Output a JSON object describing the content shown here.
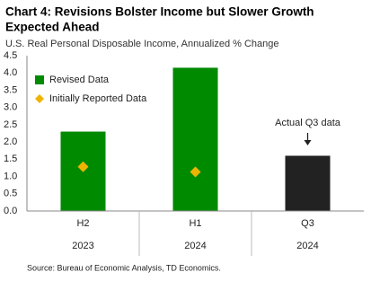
{
  "chart_data": {
    "type": "bar",
    "title": [
      "Chart 4: Revisions Bolster Income but Slower Growth",
      "Expected Ahead"
    ],
    "subtitle": "U.S. Real Personal Disposable Income, Annualized % Change",
    "categories": [
      "H2",
      "H1",
      "Q3"
    ],
    "category_groups": [
      "2023",
      "2024",
      "2024"
    ],
    "series": [
      {
        "name": "Revised Data",
        "kind": "bar",
        "color": "#008a00",
        "point_colors": [
          "#008a00",
          "#008a00",
          "#222222"
        ],
        "values": [
          2.3,
          4.15,
          1.6
        ]
      },
      {
        "name": "Initially Reported Data",
        "kind": "diamond",
        "color": "#f0b400",
        "values": [
          1.28,
          1.13,
          null
        ]
      }
    ],
    "ylim": [
      0,
      4.5
    ],
    "yticks": [
      {
        "value": 0,
        "label": "0.0"
      },
      0.5,
      {
        "value": 1,
        "label": "1.0"
      },
      1.5,
      {
        "value": 2,
        "label": "2.0"
      },
      2.5,
      {
        "value": 3,
        "label": "3.0"
      },
      3.5,
      {
        "value": 4,
        "label": "4.0"
      },
      4.5
    ],
    "grid": false,
    "legend": "top-left",
    "annotation": "Actual Q3 data",
    "source": "Source: Bureau of Economic Analysis, TD Economics."
  }
}
